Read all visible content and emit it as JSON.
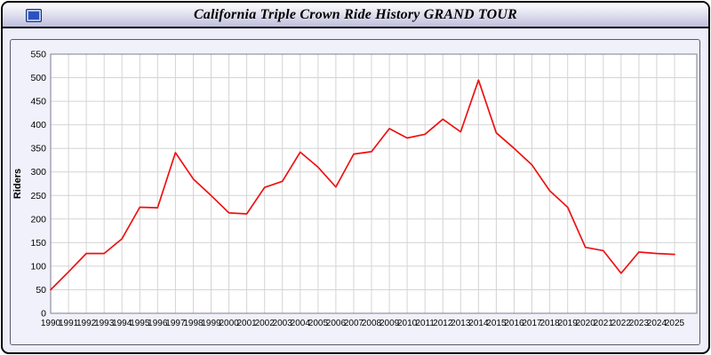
{
  "window": {
    "title": "California Triple Crown Ride History GRAND TOUR",
    "icon": "chart-window-icon"
  },
  "chart_data": {
    "type": "line",
    "title": "California Triple Crown Ride History GRAND TOUR",
    "xlabel": "",
    "ylabel": "Riders",
    "ylim": [
      0,
      550
    ],
    "ytick_step": 50,
    "grid": true,
    "legend": "none",
    "line_color": "#ee1111",
    "grid_color": "#d4d4d4",
    "plot_bg": "#ffffff",
    "panel_bg": "#f1f1fb",
    "x": [
      1990,
      1991,
      1992,
      1993,
      1994,
      1995,
      1996,
      1997,
      1998,
      1999,
      2000,
      2001,
      2002,
      2003,
      2004,
      2005,
      2006,
      2007,
      2008,
      2009,
      2010,
      2011,
      2012,
      2013,
      2014,
      2015,
      2016,
      2017,
      2018,
      2019,
      2020,
      2021,
      2022,
      2023,
      2024,
      2025
    ],
    "values": [
      50,
      88,
      127,
      127,
      158,
      225,
      224,
      341,
      285,
      250,
      213,
      211,
      267,
      280,
      342,
      310,
      268,
      338,
      343,
      392,
      372,
      380,
      412,
      385,
      495,
      383,
      350,
      315,
      260,
      225,
      140,
      133,
      85,
      130,
      127,
      125
    ]
  }
}
